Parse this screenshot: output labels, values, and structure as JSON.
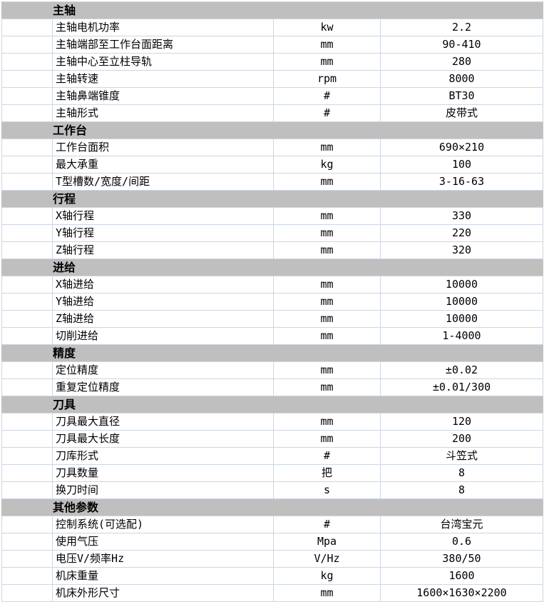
{
  "colors": {
    "border": "#ccd6e2",
    "section_header_bg": "#bfbfbf",
    "text": "#000000",
    "row_bg": "#ffffff"
  },
  "spec_table": {
    "sections": [
      {
        "title": "主轴",
        "rows": [
          {
            "label": "主轴电机功率",
            "unit": "kw",
            "value": "2.2"
          },
          {
            "label": "主轴端部至工作台面距离",
            "unit": "mm",
            "value": "90-410"
          },
          {
            "label": "主轴中心至立柱导轨",
            "unit": "mm",
            "value": "280"
          },
          {
            "label": "主轴转速",
            "unit": "rpm",
            "value": "8000"
          },
          {
            "label": "主轴鼻端锥度",
            "unit": "#",
            "value": "BT30"
          },
          {
            "label": "主轴形式",
            "unit": "#",
            "value": "皮带式"
          }
        ]
      },
      {
        "title": "工作台",
        "rows": [
          {
            "label": "工作台面积",
            "unit": "mm",
            "value": "690×210"
          },
          {
            "label": "最大承重",
            "unit": "kg",
            "value": "100"
          },
          {
            "label": "T型槽数/宽度/间距",
            "unit": "mm",
            "value": "3-16-63"
          }
        ]
      },
      {
        "title": "行程",
        "rows": [
          {
            "label": "X轴行程",
            "unit": "mm",
            "value": "330"
          },
          {
            "label": "Y轴行程",
            "unit": "mm",
            "value": "220"
          },
          {
            "label": "Z轴行程",
            "unit": "mm",
            "value": "320"
          }
        ]
      },
      {
        "title": "进给",
        "rows": [
          {
            "label": "X轴进给",
            "unit": "mm",
            "value": "10000"
          },
          {
            "label": "Y轴进给",
            "unit": "mm",
            "value": "10000"
          },
          {
            "label": "Z轴进给",
            "unit": "mm",
            "value": "10000"
          },
          {
            "label": "切削进给",
            "unit": "mm",
            "value": "1-4000"
          }
        ]
      },
      {
        "title": "精度",
        "rows": [
          {
            "label": "定位精度",
            "unit": "mm",
            "value": "±0.02"
          },
          {
            "label": "重复定位精度",
            "unit": "mm",
            "value": "±0.01/300"
          }
        ]
      },
      {
        "title": "刀具",
        "rows": [
          {
            "label": "刀具最大直径",
            "unit": "mm",
            "value": "120"
          },
          {
            "label": "刀具最大长度",
            "unit": "mm",
            "value": "200"
          },
          {
            "label": "刀库形式",
            "unit": "#",
            "value": "斗笠式"
          },
          {
            "label": "刀具数量",
            "unit": "把",
            "value": "8"
          },
          {
            "label": "换刀时间",
            "unit": "s",
            "value": "8"
          }
        ]
      },
      {
        "title": "其他参数",
        "rows": [
          {
            "label": "控制系统(可选配)",
            "unit": "#",
            "value": "台湾宝元"
          },
          {
            "label": "使用气压",
            "unit": "Mpa",
            "value": "0.6"
          },
          {
            "label": "电压V/频率Hz",
            "unit": "V/Hz",
            "value": "380/50"
          },
          {
            "label": "机床重量",
            "unit": "kg",
            "value": "1600"
          },
          {
            "label": "机床外形尺寸",
            "unit": "mm",
            "value": "1600×1630×2200"
          }
        ]
      }
    ]
  }
}
